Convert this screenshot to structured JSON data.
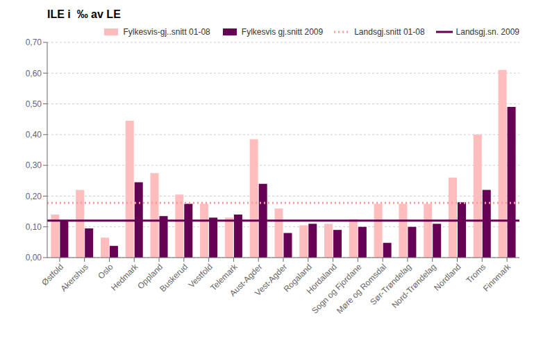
{
  "chart_data": {
    "type": "bar",
    "title": "ILE i  ‰ av LE",
    "categories": [
      "Østfold",
      "Akershus",
      "Oslo",
      "Hedmark",
      "Oppland",
      "Buskerud",
      "Vestfold",
      "Telemark",
      "Aust-Agder",
      "Vest-Agder",
      "Rogaland",
      "Hordaland",
      "Sogn og Fjordane",
      "Møre og Romsdal",
      "Sør-Trøndelag",
      "Nord-Trøndelag",
      "Nordland",
      "Troms",
      "Finnmark"
    ],
    "series": [
      {
        "name": "Fylkesvis-gj..snitt 01-08",
        "color": "#FFBDBD",
        "values": [
          0.14,
          0.22,
          0.065,
          0.445,
          0.275,
          0.205,
          0.175,
          0.13,
          0.385,
          0.16,
          0.105,
          0.11,
          0.125,
          0.175,
          0.175,
          0.175,
          0.26,
          0.4,
          0.61
        ]
      },
      {
        "name": "Fylkesvis gj.snitt 2009",
        "color": "#660055",
        "values": [
          0.12,
          0.095,
          0.038,
          0.245,
          0.135,
          0.175,
          0.13,
          0.14,
          0.24,
          0.08,
          0.11,
          0.09,
          0.1,
          0.048,
          0.1,
          0.11,
          0.18,
          0.22,
          0.49
        ]
      }
    ],
    "reference_lines": [
      {
        "name": "Landsgj.snitt 01-08",
        "value": 0.178,
        "color": "#FF9999",
        "line_style": "dotted"
      },
      {
        "name": "Landsgj.sn. 2009",
        "value": 0.12,
        "color": "#660055",
        "line_style": "solid"
      }
    ],
    "ylim": [
      0.0,
      0.7
    ],
    "yticks": [
      {
        "value": 0.0,
        "label": "0,00"
      },
      {
        "value": 0.1,
        "label": "0,10"
      },
      {
        "value": 0.2,
        "label": "0,20"
      },
      {
        "value": 0.3,
        "label": "0,30"
      },
      {
        "value": 0.4,
        "label": "0,40"
      },
      {
        "value": 0.5,
        "label": "0,50"
      },
      {
        "value": 0.6,
        "label": "0,60"
      },
      {
        "value": 0.7,
        "label": "0,70"
      }
    ],
    "grid": true,
    "legend": "upper right"
  }
}
